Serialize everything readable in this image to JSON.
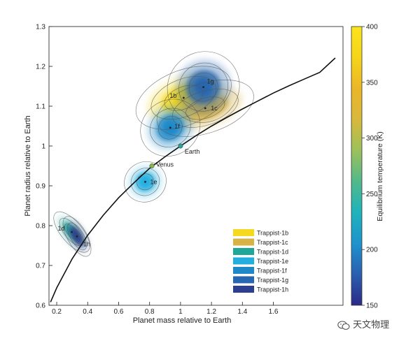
{
  "chart_data": {
    "type": "scatter",
    "xlabel": "Planet mass relative to Earth",
    "ylabel": "Planet radius relative to Earth",
    "xlim": [
      0.15,
      2.05
    ],
    "ylim": [
      0.6,
      1.3
    ],
    "xticks": [
      0.2,
      0.4,
      0.6,
      0.8,
      1,
      1.2,
      1.4,
      1.6
    ],
    "xtick_labels": [
      "0.2",
      "0.4",
      "0.6",
      "0.8",
      "1",
      "1.2",
      "1.4",
      "1.6"
    ],
    "yticks": [
      0.6,
      0.7,
      0.8,
      0.9,
      1.0,
      1.1,
      1.2,
      1.3
    ],
    "ytick_labels": [
      "0.6",
      "0.7",
      "0.8",
      "0.9",
      "1",
      "1.1",
      "1.2",
      "1.3"
    ],
    "grid": false,
    "legend_position": "lower-right",
    "colorbar": {
      "label": "Equilibrium temperature (K)",
      "min": 150,
      "max": 400,
      "ticks": [
        150,
        200,
        250,
        300,
        350,
        400
      ],
      "tick_labels": [
        "150",
        "200",
        "250",
        "300",
        "350",
        "400"
      ],
      "colormap": [
        "#2b2a86",
        "#2a5fb0",
        "#1e93cc",
        "#1fb3bc",
        "#52b98a",
        "#9cc15a",
        "#d8b83c",
        "#ebb628",
        "#f5d41a",
        "#fbe41c"
      ]
    },
    "series": [
      {
        "name": "Trappist-1b",
        "label": "1b",
        "mass": 1.02,
        "radius": 1.121,
        "temperature": 400,
        "color": "#f4d91e"
      },
      {
        "name": "Trappist-1c",
        "label": "1c",
        "mass": 1.16,
        "radius": 1.095,
        "temperature": 342,
        "color": "#d8b244"
      },
      {
        "name": "Trappist-1d",
        "label": "1d",
        "mass": 0.297,
        "radius": 0.784,
        "temperature": 288,
        "color": "#1fa898"
      },
      {
        "name": "Trappist-1e",
        "label": "1e",
        "mass": 0.772,
        "radius": 0.91,
        "temperature": 251,
        "color": "#23aee0"
      },
      {
        "name": "Trappist-1f",
        "label": "1f",
        "mass": 0.934,
        "radius": 1.046,
        "temperature": 219,
        "color": "#1e88c8"
      },
      {
        "name": "Trappist-1g",
        "label": "1g",
        "mass": 1.148,
        "radius": 1.148,
        "temperature": 198,
        "color": "#2766b0"
      },
      {
        "name": "Trappist-1h",
        "label": "1h",
        "mass": 0.331,
        "radius": 0.773,
        "temperature": 173,
        "color": "#2c3e8f"
      }
    ],
    "reference_points": [
      {
        "name": "Earth",
        "mass": 1.0,
        "radius": 1.0
      },
      {
        "name": "Venus",
        "mass": 0.815,
        "radius": 0.95
      }
    ],
    "reference_curve": {
      "type": "line",
      "x": [
        0.16,
        0.2,
        0.3,
        0.4,
        0.5,
        0.6,
        0.7,
        0.8,
        0.9,
        1.0,
        1.1,
        1.2,
        1.3,
        1.4,
        1.5,
        1.6,
        1.7,
        1.8,
        1.9,
        2.0
      ],
      "y": [
        0.608,
        0.644,
        0.717,
        0.776,
        0.826,
        0.87,
        0.908,
        0.944,
        0.973,
        1.0,
        1.026,
        1.05,
        1.072,
        1.093,
        1.113,
        1.133,
        1.151,
        1.168,
        1.185,
        1.221
      ]
    }
  },
  "watermark": {
    "text": "天文物理",
    "icon": "wechat-icon"
  }
}
